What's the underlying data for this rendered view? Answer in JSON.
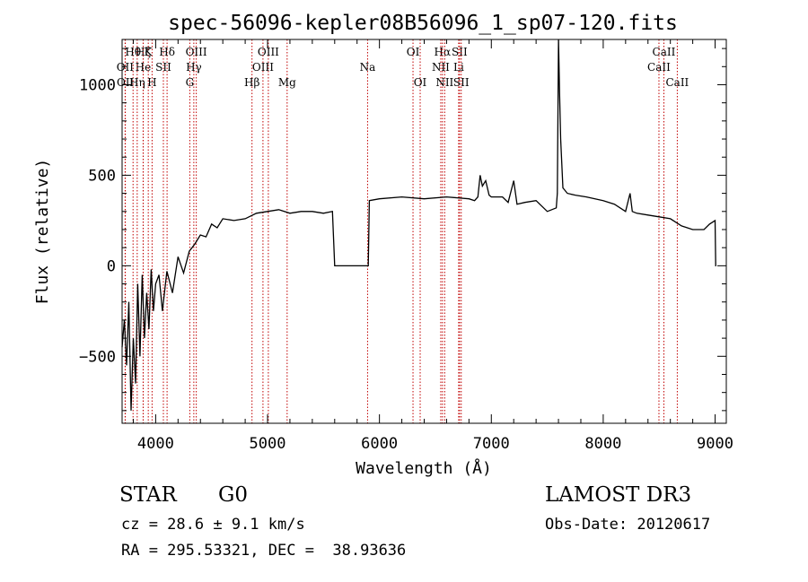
{
  "chart_data": {
    "type": "line",
    "title": "spec-56096-kepler08B56096_1_sp07-120.fits",
    "xlabel": "Wavelength (Å)",
    "ylabel": "Flux (relative)",
    "xlim": [
      3700,
      9100
    ],
    "ylim": [
      -870,
      1250
    ],
    "x_ticks": [
      4000,
      5000,
      6000,
      7000,
      8000,
      9000
    ],
    "x_tick_labels": [
      "4000",
      "5000",
      "6000",
      "7000",
      "8000",
      "9000"
    ],
    "y_ticks": [
      -500,
      0,
      500,
      1000
    ],
    "y_tick_labels": [
      "−500",
      "0",
      "500",
      "1000"
    ],
    "series": [
      {
        "name": "flux",
        "x": [
          3700,
          3720,
          3740,
          3760,
          3780,
          3800,
          3820,
          3840,
          3860,
          3880,
          3900,
          3920,
          3940,
          3960,
          3980,
          4000,
          4030,
          4060,
          4100,
          4150,
          4200,
          4250,
          4300,
          4350,
          4400,
          4450,
          4500,
          4550,
          4600,
          4700,
          4800,
          4900,
          5000,
          5100,
          5200,
          5300,
          5400,
          5500,
          5580,
          5600,
          5800,
          5900,
          5910,
          6000,
          6200,
          6400,
          6600,
          6800,
          6850,
          6880,
          6900,
          6920,
          6950,
          6980,
          7000,
          7100,
          7150,
          7200,
          7230,
          7300,
          7400,
          7500,
          7580,
          7590,
          7600,
          7610,
          7620,
          7640,
          7680,
          7750,
          7850,
          8000,
          8100,
          8200,
          8240,
          8260,
          8300,
          8400,
          8500,
          8600,
          8700,
          8800,
          8900,
          8950,
          9000,
          9005,
          9010
        ],
        "y": [
          -450,
          -300,
          -550,
          -200,
          -800,
          -400,
          -650,
          -100,
          -500,
          -50,
          -400,
          -150,
          -350,
          -20,
          -250,
          -100,
          -50,
          -250,
          -30,
          -150,
          50,
          -40,
          80,
          120,
          170,
          160,
          230,
          210,
          260,
          250,
          260,
          290,
          300,
          310,
          290,
          300,
          300,
          290,
          300,
          0,
          0,
          0,
          360,
          370,
          380,
          370,
          380,
          370,
          360,
          380,
          500,
          440,
          470,
          390,
          380,
          380,
          350,
          470,
          340,
          350,
          360,
          300,
          320,
          400,
          1250,
          950,
          700,
          430,
          400,
          390,
          380,
          360,
          340,
          300,
          400,
          300,
          290,
          280,
          270,
          260,
          220,
          200,
          200,
          230,
          250,
          0,
          0
        ]
      }
    ],
    "line_markers": [
      {
        "name": "Hθ",
        "x": 3798,
        "row": 1
      },
      {
        "name": "OII",
        "x": 3727,
        "row": 2
      },
      {
        "name": "OII",
        "x": 3729,
        "row": 3
      },
      {
        "name": "Hζ",
        "x": 3889,
        "row": 1
      },
      {
        "name": "He",
        "x": 3888,
        "row": 2
      },
      {
        "name": "Hη",
        "x": 3835,
        "row": 3
      },
      {
        "name": "K",
        "x": 3934,
        "row": 1
      },
      {
        "name": "SII",
        "x": 4069,
        "row": 2
      },
      {
        "name": "H",
        "x": 3968,
        "row": 3
      },
      {
        "name": "Hδ",
        "x": 4102,
        "row": 1
      },
      {
        "name": "OIII",
        "x": 4363,
        "row": 1
      },
      {
        "name": "Hγ",
        "x": 4341,
        "row": 2
      },
      {
        "name": "G",
        "x": 4305,
        "row": 3
      },
      {
        "name": "Hβ",
        "x": 4861,
        "row": 3
      },
      {
        "name": "OIII",
        "x": 5007,
        "row": 1
      },
      {
        "name": "OIII",
        "x": 4959,
        "row": 2
      },
      {
        "name": "Mg",
        "x": 5175,
        "row": 3
      },
      {
        "name": "Na",
        "x": 5894,
        "row": 2
      },
      {
        "name": "OI",
        "x": 6300,
        "row": 1
      },
      {
        "name": "OI",
        "x": 6364,
        "row": 3
      },
      {
        "name": "Hα",
        "x": 6563,
        "row": 1
      },
      {
        "name": "NII",
        "x": 6548,
        "row": 2
      },
      {
        "name": "NII",
        "x": 6583,
        "row": 3
      },
      {
        "name": "SII",
        "x": 6716,
        "row": 1
      },
      {
        "name": "Li",
        "x": 6708,
        "row": 2
      },
      {
        "name": "SII",
        "x": 6731,
        "row": 3
      },
      {
        "name": "CaII",
        "x": 8542,
        "row": 1
      },
      {
        "name": "CaII",
        "x": 8498,
        "row": 2
      },
      {
        "name": "CaII",
        "x": 8662,
        "row": 3
      }
    ]
  },
  "info": {
    "object_type": "STAR",
    "subclass": "G0",
    "survey": "LAMOST DR3",
    "redshift": "cz = 28.6 ± 9.1 km/s",
    "obs_date": "Obs-Date: 20120617",
    "coords": "RA = 295.53321, DEC =  38.93636"
  }
}
